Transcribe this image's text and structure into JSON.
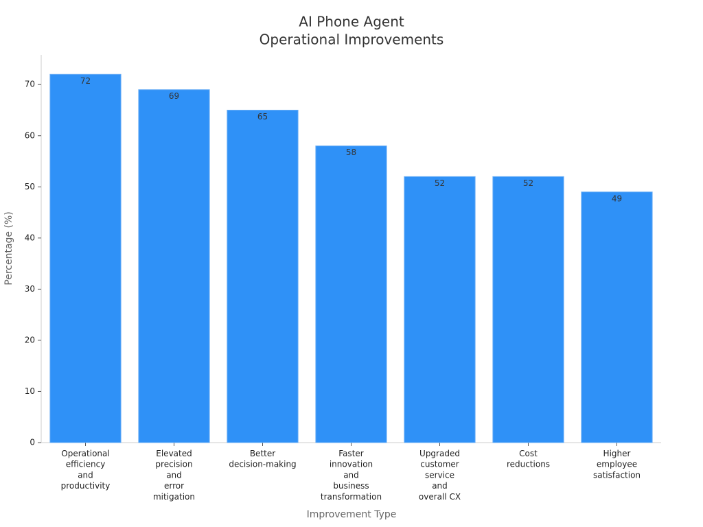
{
  "chart_data": {
    "type": "bar",
    "title": [
      "AI Phone Agent",
      "Operational Improvements"
    ],
    "x_label": "Improvement Type",
    "y_label": "Percentage (%)",
    "categories": [
      "Operational\nefficiency\nand\nproductivity",
      "Elevated\nprecision\nand\nerror\nmitigation",
      "Better\ndecision-making",
      "Faster\ninnovation\nand\nbusiness\ntransformation",
      "Upgraded\ncustomer\nservice\nand\noverall CX",
      "Cost\nreductions",
      "Higher\nemployee\nsatisfaction"
    ],
    "values": [
      72,
      69,
      65,
      58,
      52,
      52,
      49
    ],
    "color": "#2f91f7",
    "ylim": [
      0,
      75.8
    ],
    "yticks": [
      0,
      10,
      20,
      30,
      40,
      50,
      60,
      70
    ]
  }
}
